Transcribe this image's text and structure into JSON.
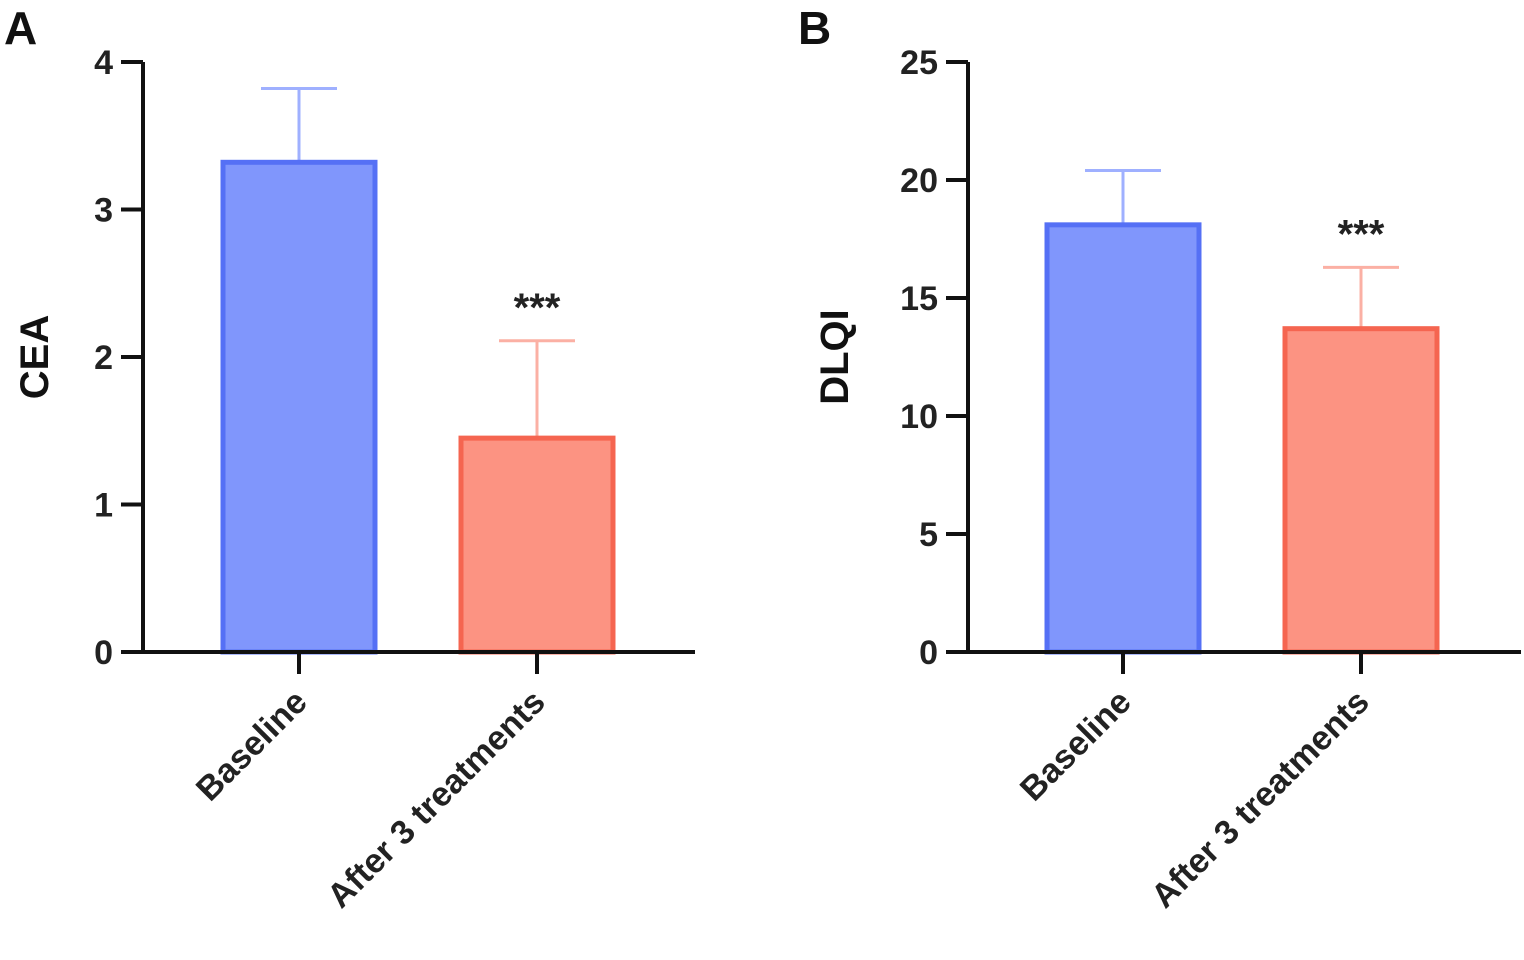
{
  "colors": {
    "baseline_fill": "#8096FC",
    "baseline_stroke": "#5570F5",
    "baseline_error": "#9FB0FF",
    "treatment_fill": "#FC9382",
    "treatment_stroke": "#F56550",
    "treatment_error": "#FBB0A4",
    "axis": "#111111"
  },
  "chart_data": [
    {
      "panel": "A",
      "type": "bar",
      "categories": [
        "Baseline",
        "After 3 treatments"
      ],
      "values": [
        3.32,
        1.45
      ],
      "error_upper": [
        3.82,
        2.11
      ],
      "significance": [
        "",
        "***"
      ],
      "ylabel": "CEA",
      "xlabel": "",
      "ylim": [
        0,
        4
      ],
      "yticks": [
        "0",
        "1",
        "2",
        "3",
        "4"
      ],
      "grid": false,
      "legend": "none"
    },
    {
      "panel": "B",
      "type": "bar",
      "categories": [
        "Baseline",
        "After 3 treatments"
      ],
      "values": [
        18.1,
        13.7
      ],
      "error_upper": [
        20.4,
        16.3
      ],
      "significance": [
        "",
        "***"
      ],
      "ylabel": "DLQI",
      "xlabel": "",
      "ylim": [
        0,
        25
      ],
      "yticks": [
        "0",
        "5",
        "10",
        "15",
        "20",
        "25"
      ],
      "grid": false,
      "legend": "none"
    }
  ]
}
